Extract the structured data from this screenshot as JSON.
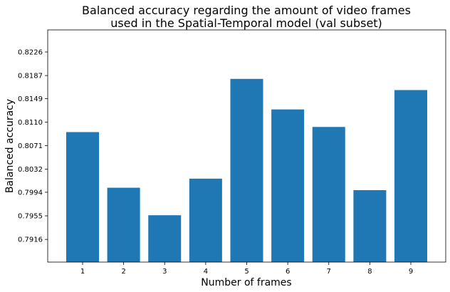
{
  "chart_data": {
    "type": "bar",
    "title_lines": [
      "Balanced accuracy regarding the amount of video frames",
      "used in the Spatial-Temporal model (val subset)"
    ],
    "xlabel": "Number of frames",
    "ylabel": "Balanced accuracy",
    "categories": [
      "1",
      "2",
      "3",
      "4",
      "5",
      "6",
      "7",
      "8",
      "9"
    ],
    "values": [
      0.80935,
      0.80015,
      0.7956,
      0.80165,
      0.81815,
      0.8131,
      0.8102,
      0.79975,
      0.8163
    ],
    "ylim": [
      0.78785,
      0.82625
    ],
    "yticks": [
      "0.7916",
      "0.7955",
      "0.7994",
      "0.8032",
      "0.8071",
      "0.8110",
      "0.8149",
      "0.8187",
      "0.8226"
    ],
    "bar_color": "#1f77b4",
    "grid": false,
    "legend": "none"
  }
}
